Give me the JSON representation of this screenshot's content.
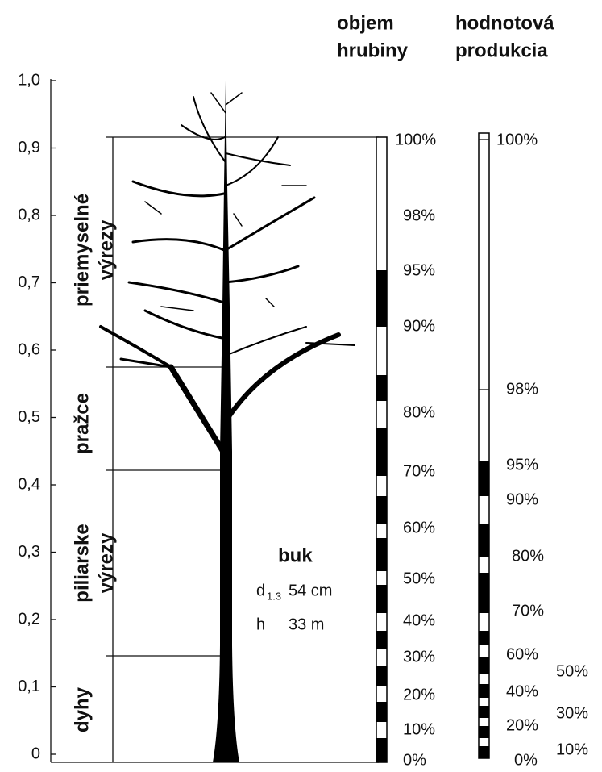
{
  "headers": [
    {
      "lines": [
        "objem",
        "hrubiny"
      ]
    },
    {
      "lines": [
        "hodnotová",
        "produkcia"
      ]
    }
  ],
  "y_axis": {
    "ticks": [
      "0",
      "0,1",
      "0,2",
      "0,3",
      "0,4",
      "0,5",
      "0,6",
      "0,7",
      "0,8",
      "0,9",
      "1,0"
    ]
  },
  "sections": [
    {
      "lines": [
        "priemyselné",
        "výrezy"
      ]
    },
    {
      "lines": [
        "pražce"
      ]
    },
    {
      "lines": [
        "piliarske",
        "výrezy"
      ]
    },
    {
      "lines": [
        "dyhy"
      ]
    }
  ],
  "tree": {
    "species": "buk",
    "diameter_symbol": "d",
    "diameter_subscript": "1.3",
    "diameter": "54 cm",
    "height_symbol": "h",
    "height": "33 m"
  },
  "scale_volume": {
    "labels": [
      "100%",
      "98%",
      "95%",
      "90%",
      "80%",
      "70%",
      "60%",
      "50%",
      "40%",
      "30%",
      "20%",
      "10%",
      "0%"
    ]
  },
  "scale_value": {
    "labels": [
      "100%",
      "98%",
      "95%",
      "90%",
      "80%",
      "70%",
      "60%",
      "40%",
      "20%",
      "0%"
    ],
    "outer_labels": [
      "50%",
      "30%",
      "10%"
    ]
  }
}
